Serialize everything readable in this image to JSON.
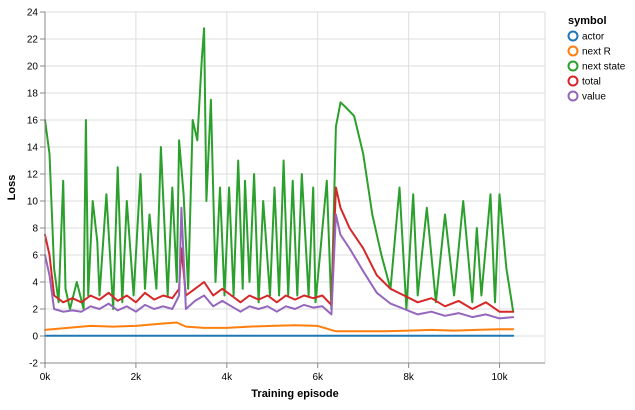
{
  "chart_data": {
    "type": "line",
    "xlabel": "Training episode",
    "ylabel": "Loss",
    "xlim": [
      0,
      11000
    ],
    "ylim": [
      -2,
      24
    ],
    "xticks": [
      0,
      2000,
      4000,
      6000,
      8000,
      10000
    ],
    "xtick_labels": [
      "0k",
      "2k",
      "4k",
      "6k",
      "8k",
      "10k"
    ],
    "yticks": [
      -2,
      0,
      2,
      4,
      6,
      8,
      10,
      12,
      14,
      16,
      18,
      20,
      22,
      24
    ],
    "ytick_labels": [
      "-2",
      "0",
      "2",
      "4",
      "6",
      "8",
      "10",
      "12",
      "14",
      "16",
      "18",
      "20",
      "22",
      "24"
    ],
    "grid": true,
    "legend": {
      "title": "symbol",
      "position": "right"
    },
    "series": [
      {
        "name": "actor",
        "color": "#1f77b4",
        "x": [
          0,
          10300
        ],
        "y": [
          0.02,
          0.02
        ]
      },
      {
        "name": "next R",
        "color": "#ff7f0e",
        "x": [
          0,
          500,
          1000,
          1500,
          2000,
          2500,
          2900,
          3100,
          3500,
          4000,
          4500,
          5000,
          5500,
          6000,
          6400,
          7000,
          7500,
          8000,
          8500,
          9000,
          9500,
          10000,
          10300
        ],
        "y": [
          0.45,
          0.6,
          0.75,
          0.7,
          0.75,
          0.9,
          1.0,
          0.7,
          0.6,
          0.6,
          0.7,
          0.75,
          0.8,
          0.75,
          0.35,
          0.35,
          0.35,
          0.4,
          0.45,
          0.4,
          0.45,
          0.5,
          0.5
        ]
      },
      {
        "name": "next state",
        "color": "#2ca02c",
        "x": [
          0,
          100,
          200,
          300,
          400,
          450,
          550,
          700,
          850,
          900,
          950,
          1050,
          1150,
          1200,
          1350,
          1500,
          1600,
          1700,
          1800,
          1950,
          2100,
          2200,
          2300,
          2450,
          2550,
          2700,
          2800,
          2900,
          2950,
          3050,
          3150,
          3250,
          3350,
          3450,
          3500,
          3550,
          3650,
          3750,
          3850,
          3950,
          4050,
          4150,
          4250,
          4350,
          4400,
          4500,
          4600,
          4700,
          4800,
          4950,
          5050,
          5150,
          5250,
          5350,
          5450,
          5550,
          5650,
          5800,
          5900,
          5950,
          6050,
          6200,
          6300,
          6400,
          6500,
          6600,
          6800,
          7000,
          7200,
          7400,
          7600,
          7800,
          7950,
          8100,
          8200,
          8400,
          8600,
          8800,
          9000,
          9200,
          9400,
          9500,
          9600,
          9800,
          9900,
          10000,
          10150,
          10300
        ],
        "y": [
          16.0,
          13.5,
          5.0,
          2.5,
          11.5,
          3.5,
          2.0,
          4.0,
          2.0,
          16.0,
          3.0,
          10.0,
          7.0,
          3.0,
          10.5,
          2.0,
          12.5,
          2.5,
          10.0,
          3.0,
          12.0,
          3.5,
          9.0,
          3.5,
          14.0,
          3.0,
          11.0,
          4.0,
          14.5,
          10.5,
          3.5,
          16.0,
          14.5,
          20.5,
          22.8,
          10.0,
          17.5,
          4.0,
          11.0,
          3.0,
          11.0,
          3.0,
          13.0,
          3.5,
          11.5,
          4.0,
          12.0,
          2.5,
          10.0,
          3.0,
          11.0,
          3.0,
          13.0,
          3.0,
          11.5,
          3.0,
          12.0,
          3.0,
          11.0,
          2.5,
          6.0,
          11.5,
          2.0,
          15.5,
          17.3,
          17.0,
          16.3,
          13.5,
          9.0,
          6.0,
          3.5,
          11.0,
          2.0,
          10.5,
          3.0,
          9.5,
          2.5,
          9.0,
          3.0,
          10.0,
          2.5,
          8.0,
          3.0,
          10.5,
          2.5,
          10.5,
          5.0,
          1.8
        ]
      },
      {
        "name": "total",
        "color": "#d62728",
        "x": [
          0,
          100,
          200,
          400,
          600,
          800,
          1000,
          1200,
          1400,
          1600,
          1800,
          2000,
          2200,
          2400,
          2600,
          2800,
          2950,
          3000,
          3100,
          3300,
          3500,
          3700,
          3900,
          4100,
          4300,
          4500,
          4700,
          4900,
          5100,
          5300,
          5500,
          5700,
          5900,
          6100,
          6300,
          6400,
          6500,
          6700,
          7000,
          7300,
          7600,
          7900,
          8200,
          8500,
          8800,
          9100,
          9400,
          9700,
          10000,
          10300
        ],
        "y": [
          7.5,
          6.0,
          3.0,
          2.5,
          2.8,
          2.5,
          3.0,
          2.7,
          3.2,
          2.6,
          3.0,
          2.5,
          3.2,
          2.7,
          3.0,
          2.8,
          3.5,
          6.5,
          3.0,
          3.5,
          4.0,
          3.0,
          3.5,
          3.0,
          2.5,
          3.0,
          2.7,
          3.0,
          2.5,
          3.0,
          2.7,
          3.0,
          2.8,
          3.0,
          2.3,
          11.0,
          9.5,
          8.0,
          6.5,
          4.5,
          3.5,
          3.0,
          2.5,
          2.8,
          2.2,
          2.6,
          2.0,
          2.5,
          1.8,
          1.8
        ]
      },
      {
        "name": "value",
        "color": "#9467bd",
        "x": [
          0,
          100,
          200,
          400,
          600,
          800,
          1000,
          1200,
          1400,
          1600,
          1800,
          2000,
          2200,
          2400,
          2600,
          2800,
          2950,
          3000,
          3100,
          3300,
          3500,
          3700,
          3900,
          4100,
          4300,
          4500,
          4700,
          4900,
          5100,
          5300,
          5500,
          5700,
          5900,
          6100,
          6300,
          6400,
          6500,
          6700,
          7000,
          7300,
          7600,
          7900,
          8200,
          8500,
          8800,
          9100,
          9400,
          9700,
          10000,
          10300
        ],
        "y": [
          6.0,
          4.5,
          2.0,
          1.8,
          1.9,
          1.8,
          2.2,
          2.0,
          2.4,
          1.9,
          2.2,
          1.8,
          2.3,
          2.0,
          2.2,
          2.0,
          3.0,
          9.5,
          2.0,
          2.6,
          3.0,
          2.2,
          2.6,
          2.2,
          1.8,
          2.2,
          2.0,
          2.2,
          1.8,
          2.2,
          2.0,
          2.3,
          2.1,
          2.2,
          1.6,
          9.0,
          7.5,
          6.5,
          4.8,
          3.2,
          2.4,
          2.0,
          1.6,
          1.8,
          1.5,
          1.7,
          1.4,
          1.6,
          1.3,
          1.4
        ]
      }
    ]
  }
}
